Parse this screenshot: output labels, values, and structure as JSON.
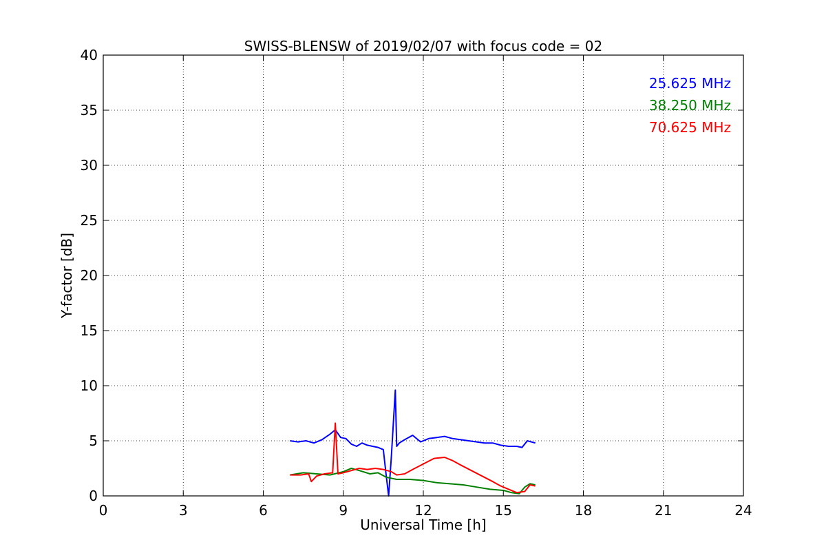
{
  "chart_data": {
    "type": "line",
    "title": "SWISS-BLENSW of 2019/02/07 with focus code = 02",
    "xlabel": "Universal Time [h]",
    "ylabel": "Y-factor [dB]",
    "xlim": [
      0,
      24
    ],
    "ylim": [
      0,
      40
    ],
    "xticks": [
      "0",
      "3",
      "6",
      "9",
      "12",
      "15",
      "18",
      "21",
      "24"
    ],
    "yticks": [
      "0",
      "5",
      "10",
      "15",
      "20",
      "25",
      "30",
      "35",
      "40"
    ],
    "grid": true,
    "legend_position": "top-right",
    "series": [
      {
        "name": "25.625 MHz",
        "color": "#0000ff",
        "x": [
          7.0,
          7.3,
          7.6,
          7.9,
          8.2,
          8.5,
          8.7,
          8.9,
          9.1,
          9.3,
          9.5,
          9.7,
          9.9,
          10.1,
          10.3,
          10.5,
          10.6,
          10.7,
          10.8,
          10.95,
          11.0,
          11.1,
          11.3,
          11.6,
          11.9,
          12.2,
          12.5,
          12.8,
          13.1,
          13.4,
          13.7,
          14.0,
          14.3,
          14.6,
          14.9,
          15.2,
          15.5,
          15.7,
          15.9,
          16.2
        ],
        "y": [
          5.0,
          4.9,
          5.0,
          4.8,
          5.1,
          5.6,
          6.0,
          5.3,
          5.2,
          4.7,
          4.5,
          4.8,
          4.6,
          4.5,
          4.4,
          4.2,
          2.0,
          0.0,
          3.5,
          9.6,
          4.5,
          4.8,
          5.1,
          5.5,
          4.9,
          5.2,
          5.3,
          5.4,
          5.2,
          5.1,
          5.0,
          4.9,
          4.8,
          4.8,
          4.6,
          4.5,
          4.5,
          4.4,
          5.0,
          4.8
        ]
      },
      {
        "name": "38.250 MHz",
        "color": "#008000",
        "x": [
          7.0,
          7.5,
          8.0,
          8.5,
          9.0,
          9.3,
          9.6,
          10.0,
          10.3,
          10.6,
          11.0,
          11.5,
          12.0,
          12.5,
          13.0,
          13.5,
          14.0,
          14.5,
          15.0,
          15.3,
          15.6,
          15.8,
          16.0,
          16.2
        ],
        "y": [
          1.9,
          2.1,
          2.0,
          1.9,
          2.2,
          2.5,
          2.3,
          2.0,
          2.1,
          1.7,
          1.5,
          1.5,
          1.4,
          1.2,
          1.1,
          1.0,
          0.8,
          0.6,
          0.5,
          0.3,
          0.2,
          0.8,
          1.1,
          1.0
        ]
      },
      {
        "name": "70.625 MHz",
        "color": "#ff0000",
        "x": [
          7.0,
          7.4,
          7.7,
          7.8,
          8.0,
          8.3,
          8.6,
          8.7,
          8.8,
          9.0,
          9.3,
          9.6,
          9.9,
          10.2,
          10.5,
          10.8,
          11.0,
          11.3,
          11.6,
          12.0,
          12.4,
          12.8,
          13.1,
          13.4,
          13.8,
          14.2,
          14.6,
          14.9,
          15.2,
          15.5,
          15.8,
          16.0,
          16.2
        ],
        "y": [
          1.9,
          1.9,
          2.0,
          1.3,
          1.8,
          2.0,
          2.1,
          6.6,
          2.0,
          2.1,
          2.3,
          2.5,
          2.4,
          2.5,
          2.4,
          2.2,
          1.9,
          2.0,
          2.4,
          2.9,
          3.4,
          3.5,
          3.2,
          2.8,
          2.3,
          1.8,
          1.3,
          0.9,
          0.6,
          0.3,
          0.4,
          1.0,
          0.9
        ]
      }
    ]
  }
}
